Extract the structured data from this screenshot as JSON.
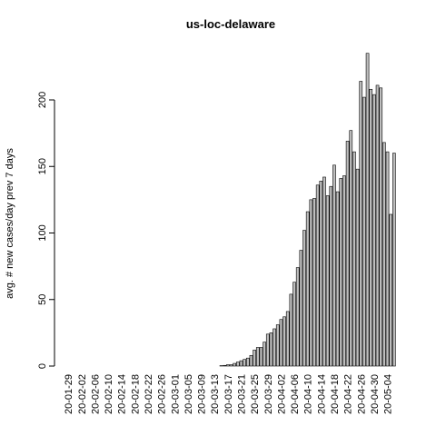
{
  "chart_data": {
    "type": "bar",
    "title": "us-loc-delaware",
    "y_label": "avg. # new cases/day prev  7  days",
    "categories": [
      "20-01-29",
      null,
      null,
      null,
      "20-02-02",
      null,
      null,
      null,
      "20-02-06",
      null,
      null,
      null,
      "20-02-10",
      null,
      null,
      null,
      "20-02-14",
      null,
      null,
      null,
      "20-02-18",
      null,
      null,
      null,
      "20-02-22",
      null,
      null,
      null,
      "20-02-26",
      null,
      null,
      null,
      "20-03-01",
      null,
      null,
      null,
      "20-03-05",
      null,
      null,
      null,
      "20-03-09",
      null,
      null,
      null,
      "20-03-13",
      null,
      null,
      null,
      "20-03-17",
      null,
      null,
      null,
      "20-03-21",
      null,
      null,
      null,
      "20-03-25",
      null,
      null,
      null,
      "20-03-29",
      null,
      null,
      null,
      "20-04-02",
      null,
      null,
      null,
      "20-04-06",
      null,
      null,
      null,
      "20-04-10",
      null,
      null,
      null,
      "20-04-14",
      null,
      null,
      null,
      "20-04-18",
      null,
      null,
      null,
      "20-04-22",
      null,
      null,
      null,
      "20-04-26",
      null,
      null,
      null,
      "20-04-30",
      null,
      null,
      null,
      "20-05-04",
      null,
      null
    ],
    "values": [
      0,
      0,
      0,
      0,
      0,
      0,
      0,
      0,
      0,
      0,
      0,
      0,
      0,
      0,
      0,
      0,
      0,
      0,
      0,
      0,
      0,
      0,
      0,
      0,
      0,
      0,
      0,
      0,
      0,
      0,
      0,
      0,
      0,
      0,
      0,
      0,
      0,
      0,
      0,
      0,
      0,
      0,
      0,
      0,
      0,
      0,
      0.3,
      0.5,
      1,
      1,
      2,
      3,
      4,
      5,
      6,
      8,
      12,
      14,
      14,
      18,
      24,
      25,
      28,
      31,
      35,
      37,
      41,
      54,
      63,
      74,
      87,
      102,
      116,
      125,
      126,
      136,
      139,
      142,
      128,
      135,
      151,
      131,
      141,
      143,
      169,
      177,
      161,
      148,
      214,
      202,
      235,
      208,
      204,
      211,
      209,
      168,
      161,
      114,
      160
    ],
    "color": "#bebebe",
    "ylim": [
      0,
      240
    ],
    "yticks": [
      0,
      50,
      100,
      150,
      200
    ]
  }
}
